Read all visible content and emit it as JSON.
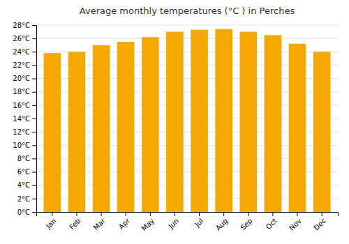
{
  "chart_data": {
    "type": "bar",
    "title": "Average monthly temperatures (°C ) in Perches",
    "categories": [
      "Jan",
      "Feb",
      "Mar",
      "Apr",
      "May",
      "Jun",
      "Jul",
      "Aug",
      "Sep",
      "Oct",
      "Nov",
      "Dec"
    ],
    "values": [
      23.8,
      24.0,
      25.0,
      25.5,
      26.2,
      27.0,
      27.3,
      27.4,
      27.0,
      26.5,
      25.2,
      24.0
    ],
    "color": "#F5A800",
    "ylim": [
      0,
      28
    ],
    "yticks": [
      {
        "value": 0,
        "label": "0°C"
      },
      {
        "value": 2,
        "label": "2°C"
      },
      {
        "value": 4,
        "label": "4°C"
      },
      {
        "value": 6,
        "label": "6°C"
      },
      {
        "value": 8,
        "label": "8°C"
      },
      {
        "value": 10,
        "label": "10°C"
      },
      {
        "value": 12,
        "label": "12°C"
      },
      {
        "value": 14,
        "label": "14°C"
      },
      {
        "value": 16,
        "label": "16°C"
      },
      {
        "value": 18,
        "label": "18°C"
      },
      {
        "value": 20,
        "label": "20°C"
      },
      {
        "value": 22,
        "label": "22°C"
      },
      {
        "value": 24,
        "label": "24°C"
      },
      {
        "value": 26,
        "label": "26°C"
      },
      {
        "value": 28,
        "label": "28°C"
      }
    ],
    "grid": true
  }
}
